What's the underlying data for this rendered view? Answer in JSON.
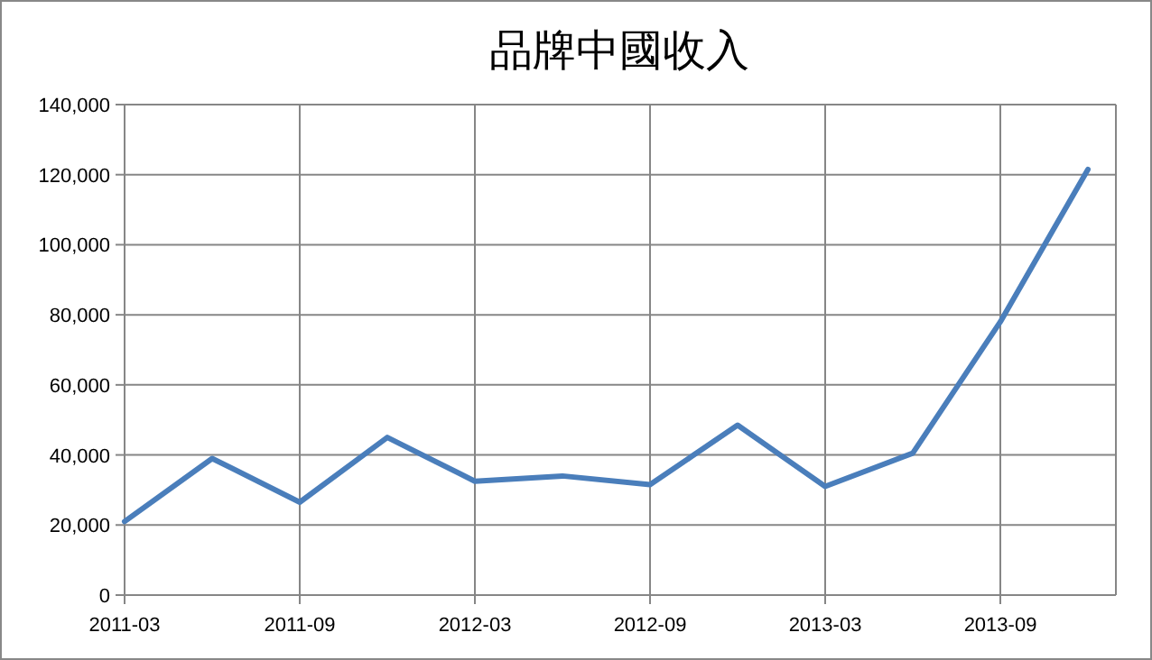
{
  "chart_data": {
    "type": "line",
    "title": "品牌中國收入",
    "categories": [
      "2011-03",
      null,
      "2011-09",
      null,
      "2012-03",
      null,
      "2012-09",
      null,
      "2013-03",
      null,
      "2013-09",
      null
    ],
    "series": [
      {
        "color": "#4a7ebb",
        "values": [
          21000,
          39000,
          26500,
          45000,
          32500,
          34000,
          31500,
          48500,
          31000,
          40500,
          78000,
          121500
        ]
      }
    ],
    "ylim": [
      0,
      140000
    ],
    "yticks": [
      {
        "value": 0,
        "label": "0"
      },
      {
        "value": 20000,
        "label": "20,000"
      },
      {
        "value": 40000,
        "label": "40,000"
      },
      {
        "value": 60000,
        "label": "60,000"
      },
      {
        "value": 80000,
        "label": "80,000"
      },
      {
        "value": 100000,
        "label": "100,000"
      },
      {
        "value": 120000,
        "label": "120,000"
      },
      {
        "value": 140000,
        "label": "140,000"
      }
    ],
    "grid": true,
    "marker": "none",
    "line_style": "solid"
  }
}
